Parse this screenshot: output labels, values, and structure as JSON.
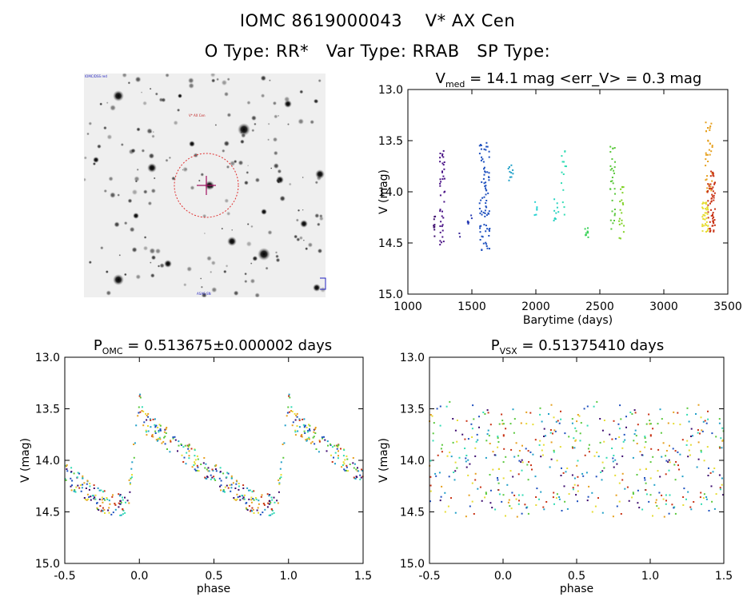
{
  "header": {
    "line1": "IOMC 8619000043    V* AX Cen",
    "line2": "O Type: RR*   Var Type: RRAB   SP Type:"
  },
  "image_panel": {
    "corner_label_top": "IOMC/DSS red",
    "target_label": "V* AX Cen",
    "corner_label_bottom": "ASAS-SN"
  },
  "chart_data": [
    {
      "id": "lightcurve",
      "type": "scatter",
      "title": "V_med = 14.1 mag <err_V> = 0.3 mag",
      "title_parts": {
        "main": "V",
        "sub": "med",
        "rest": " = 14.1 mag <err_V> = 0.3 mag"
      },
      "xlabel": "Barytime (days)",
      "ylabel": "V (mag)",
      "xlim": [
        1000,
        3500
      ],
      "ylim": [
        15.0,
        13.0
      ],
      "xticks": [
        1000,
        1500,
        2000,
        2500,
        3000,
        3500
      ],
      "yticks": [
        13.0,
        13.5,
        14.0,
        14.5,
        15.0
      ],
      "clusters": [
        {
          "x": [
            1200,
            1215
          ],
          "y": [
            14.2,
            14.45
          ],
          "n": 10,
          "color": "#3c0a6e"
        },
        {
          "x": [
            1250,
            1290
          ],
          "y": [
            13.6,
            14.6
          ],
          "n": 40,
          "color": "#4a1386"
        },
        {
          "x": [
            1400,
            1410
          ],
          "y": [
            14.35,
            14.45
          ],
          "n": 2,
          "color": "#3c2a9a"
        },
        {
          "x": [
            1460,
            1500
          ],
          "y": [
            14.2,
            14.35
          ],
          "n": 6,
          "color": "#2a3cb4"
        },
        {
          "x": [
            1560,
            1640
          ],
          "y": [
            13.5,
            14.6
          ],
          "n": 80,
          "color": "#1e50be"
        },
        {
          "x": [
            1780,
            1830
          ],
          "y": [
            13.7,
            13.9
          ],
          "n": 10,
          "color": "#21a0c8"
        },
        {
          "x": [
            1990,
            2010
          ],
          "y": [
            14.1,
            14.25
          ],
          "n": 6,
          "color": "#28d2d2"
        },
        {
          "x": [
            2140,
            2180
          ],
          "y": [
            14.05,
            14.3
          ],
          "n": 10,
          "color": "#28d2c0"
        },
        {
          "x": [
            2200,
            2240
          ],
          "y": [
            13.55,
            14.25
          ],
          "n": 14,
          "color": "#32dcb4"
        },
        {
          "x": [
            2380,
            2410
          ],
          "y": [
            14.35,
            14.45
          ],
          "n": 10,
          "color": "#3cd25a"
        },
        {
          "x": [
            2580,
            2620
          ],
          "y": [
            13.5,
            14.4
          ],
          "n": 30,
          "color": "#5ac83c"
        },
        {
          "x": [
            2650,
            2690
          ],
          "y": [
            13.95,
            14.5
          ],
          "n": 20,
          "color": "#82d228"
        },
        {
          "x": [
            3300,
            3350
          ],
          "y": [
            14.1,
            14.4
          ],
          "n": 40,
          "color": "#e6dc32"
        },
        {
          "x": [
            3320,
            3380
          ],
          "y": [
            13.3,
            14.0
          ],
          "n": 35,
          "color": "#e6a01e"
        },
        {
          "x": [
            3340,
            3400
          ],
          "y": [
            13.8,
            14.45
          ],
          "n": 60,
          "color": "#c83214"
        }
      ]
    },
    {
      "id": "phase_omc",
      "type": "scatter",
      "title": "P_OMC = 0.513675±0.000002 days",
      "title_parts": {
        "main": "P",
        "sub": "OMC",
        "rest": " = 0.513675±0.000002 days"
      },
      "xlabel": "phase",
      "ylabel": "V (mag)",
      "xlim": [
        -0.5,
        1.5
      ],
      "ylim": [
        15.0,
        13.0
      ],
      "xticks": [
        -0.5,
        0.0,
        0.5,
        1.0,
        1.5
      ],
      "yticks": [
        13.0,
        13.5,
        14.0,
        14.5,
        15.0
      ],
      "mode": "folded"
    },
    {
      "id": "phase_vsx",
      "type": "scatter",
      "title": "P_VSX = 0.51375410 days",
      "title_parts": {
        "main": "P",
        "sub": "VSX",
        "rest": " = 0.51375410 days"
      },
      "xlabel": "phase",
      "ylabel": "V (mag)",
      "xlim": [
        -0.5,
        1.5
      ],
      "ylim": [
        15.0,
        13.0
      ],
      "xticks": [
        -0.5,
        0.0,
        0.5,
        1.0,
        1.5
      ],
      "yticks": [
        13.0,
        13.5,
        14.0,
        14.5,
        15.0
      ],
      "mode": "scrambled"
    }
  ]
}
